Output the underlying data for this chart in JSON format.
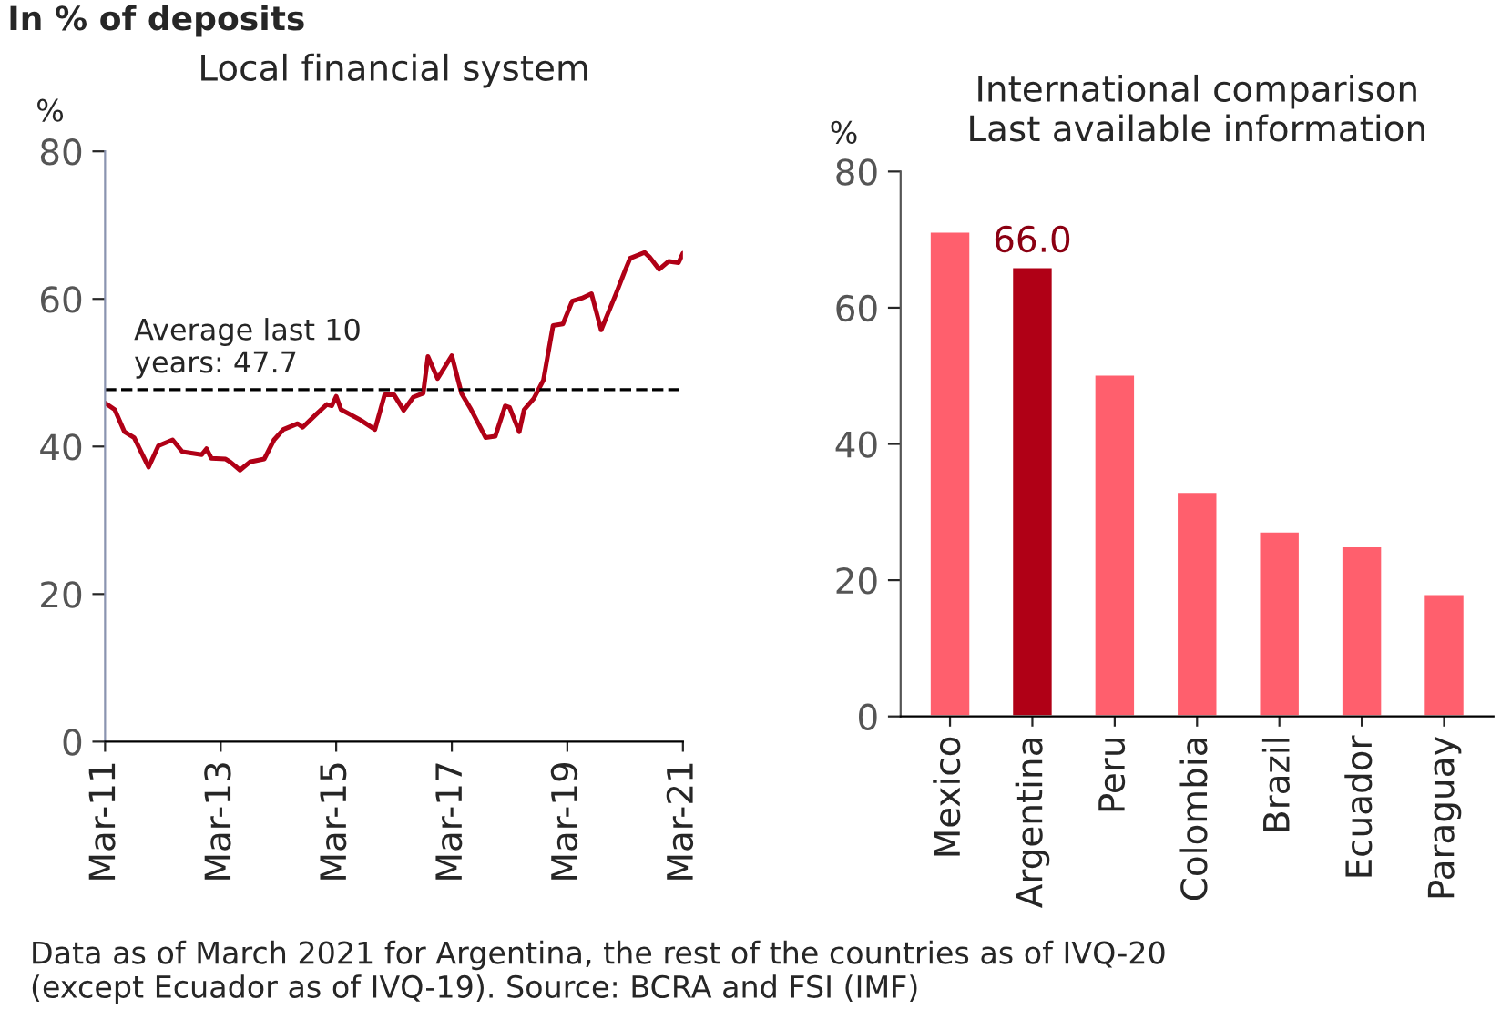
{
  "chart_data": [
    {
      "type": "line",
      "title": "Local financial system",
      "ylabel": "%",
      "x": [
        "2011-03",
        "2011-05",
        "2011-07",
        "2011-09",
        "2011-12",
        "2012-02",
        "2012-05",
        "2012-07",
        "2012-11",
        "2012-12",
        "2013-01",
        "2013-04",
        "2013-05",
        "2013-07",
        "2013-09",
        "2013-12",
        "2014-02",
        "2014-04",
        "2014-07",
        "2014-08",
        "2014-11",
        "2015-01",
        "2015-02",
        "2015-03",
        "2015-04",
        "2015-08",
        "2015-11",
        "2016-01",
        "2016-03",
        "2016-05",
        "2016-07",
        "2016-09",
        "2016-10",
        "2016-12",
        "2017-03",
        "2017-05",
        "2017-07",
        "2017-10",
        "2017-12",
        "2018-02",
        "2018-03",
        "2018-05",
        "2018-06",
        "2018-08",
        "2018-10",
        "2018-12",
        "2019-02",
        "2019-04",
        "2019-06",
        "2019-08",
        "2019-10",
        "2020-01",
        "2020-03",
        "2020-04",
        "2020-07",
        "2020-08",
        "2020-10",
        "2020-12",
        "2021-02",
        "2021-03"
      ],
      "series": [
        {
          "color": "#b00016",
          "values": [
            45.9,
            45.0,
            42.0,
            41.2,
            37.2,
            40.1,
            40.9,
            39.3,
            38.9,
            39.7,
            38.4,
            38.3,
            37.9,
            36.8,
            37.9,
            38.3,
            40.9,
            42.3,
            43.1,
            42.6,
            44.5,
            45.7,
            45.5,
            46.8,
            45.0,
            43.6,
            42.3,
            47.0,
            47.0,
            44.9,
            46.7,
            47.2,
            52.2,
            49.2,
            52.3,
            47.2,
            45.0,
            41.2,
            41.4,
            45.5,
            45.3,
            42.0,
            45.0,
            46.5,
            49.0,
            56.4,
            56.6,
            59.7,
            60.1,
            60.7,
            55.8,
            60.6,
            63.9,
            65.5,
            66.3,
            65.7,
            64.0,
            65.1,
            64.9,
            66.2
          ]
        }
      ],
      "xlim": [
        "2011-03",
        "2021-03"
      ],
      "xticks": [
        {
          "value": "2011-03",
          "label": "Mar-11"
        },
        {
          "value": "2013-03",
          "label": "Mar-13"
        },
        {
          "value": "2015-03",
          "label": "Mar-15"
        },
        {
          "value": "2017-03",
          "label": "Mar-17"
        },
        {
          "value": "2019-03",
          "label": "Mar-19"
        },
        {
          "value": "2021-03",
          "label": "Mar-21"
        }
      ],
      "ylim": [
        0,
        80
      ],
      "yticks": [
        0,
        20,
        40,
        60,
        80
      ],
      "ref_lines": [
        {
          "axis": "y",
          "value": 47.7,
          "label": "Average last 10\nyears: 47.7",
          "color": "#000000",
          "line_style": "dashed"
        }
      ],
      "annotations": [
        "In % of deposits"
      ],
      "grid": false,
      "legend": false,
      "marker": "none",
      "line_style": "solid"
    },
    {
      "type": "bar",
      "title": "International comparison\nLast available information",
      "ylabel": "%",
      "categories": [
        "Mexico",
        "Argentina",
        "Peru",
        "Colombia",
        "Brazil",
        "Ecuador",
        "Paraguay"
      ],
      "values": [
        71.2,
        66.0,
        50.2,
        33.0,
        27.2,
        25.0,
        18.0
      ],
      "colors": [
        "#ff5f6d",
        "#b00016",
        "#ff5f6d",
        "#ff5f6d",
        "#ff5f6d",
        "#ff5f6d",
        "#ff5f6d"
      ],
      "value_labels": [
        null,
        "66.0",
        null,
        null,
        null,
        null,
        null
      ],
      "ylim": [
        0,
        80
      ],
      "yticks": [
        0,
        20,
        40,
        60,
        80
      ],
      "annotations": [
        "Data as of March 2021 for Argentina, the rest of the countries as of IVQ-20\n(except Ecuador as of IVQ-19). Source: BCRA and FSI (IMF)"
      ],
      "grid": false,
      "legend": false
    }
  ]
}
